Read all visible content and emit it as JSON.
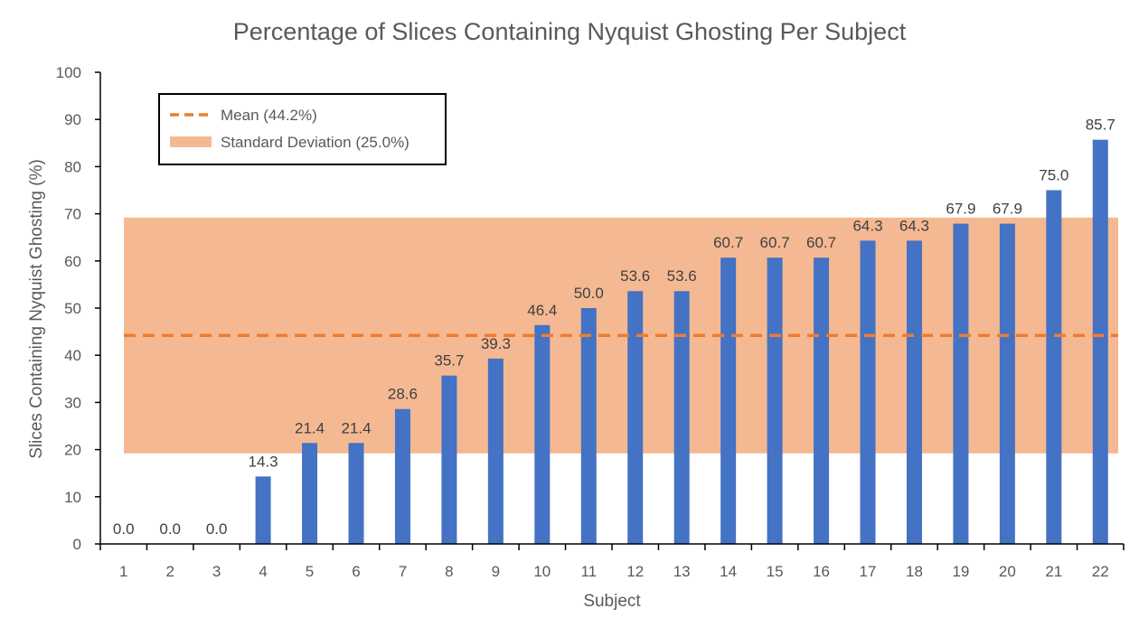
{
  "chart_data": {
    "type": "bar",
    "title": "Percentage of Slices Containing Nyquist Ghosting Per Subject",
    "xlabel": "Subject",
    "ylabel": "Slices Containing Nyquist Ghosting (%)",
    "ylim": [
      0,
      100
    ],
    "yticks": [
      "0",
      "10",
      "20",
      "30",
      "40",
      "50",
      "60",
      "70",
      "80",
      "90",
      "100"
    ],
    "categories": [
      "1",
      "2",
      "3",
      "4",
      "5",
      "6",
      "7",
      "8",
      "9",
      "10",
      "11",
      "12",
      "13",
      "14",
      "15",
      "16",
      "17",
      "18",
      "19",
      "20",
      "21",
      "22"
    ],
    "values": [
      0.0,
      0.0,
      0.0,
      14.3,
      21.4,
      21.4,
      28.6,
      35.7,
      39.3,
      46.4,
      50.0,
      53.6,
      53.6,
      60.7,
      60.7,
      60.7,
      64.3,
      64.3,
      67.9,
      67.9,
      75.0,
      85.7
    ],
    "value_labels": [
      "0.0",
      "0.0",
      "0.0",
      "14.3",
      "21.4",
      "21.4",
      "28.6",
      "35.7",
      "39.3",
      "46.4",
      "50.0",
      "53.6",
      "53.6",
      "60.7",
      "60.7",
      "60.7",
      "64.3",
      "64.3",
      "67.9",
      "67.9",
      "75.0",
      "85.7"
    ],
    "mean": 44.2,
    "std": 25.0,
    "band_range": [
      19.2,
      69.2
    ],
    "legend": [
      {
        "label": "Mean (44.2%)",
        "style": "dashed-line"
      },
      {
        "label": "Standard Deviation (25.0%)",
        "style": "band"
      }
    ],
    "legend_position": "top-left",
    "grid": false,
    "colors": {
      "bar": "#4472C4",
      "mean_line": "#ED7D31",
      "band": "#F4B992",
      "axis": "#000000",
      "text": "#595959"
    }
  }
}
